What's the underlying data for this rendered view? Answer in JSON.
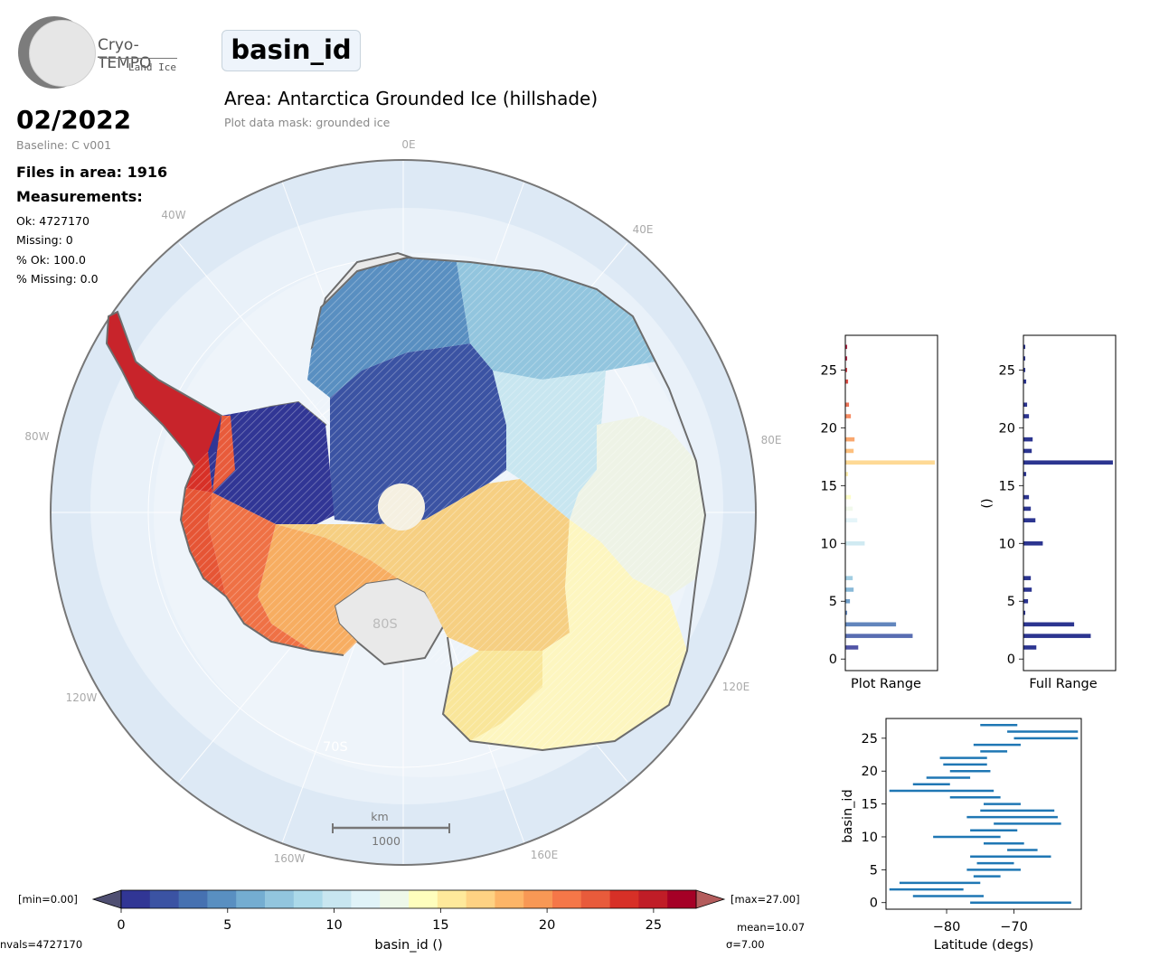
{
  "logo": {
    "title": "Cryo-TEMPO",
    "subtitle": "Land Ice"
  },
  "variable_name": "basin_id",
  "date": "02/2022",
  "baseline": "Baseline: C v001",
  "files_in_area": "Files in area: 1916",
  "measurements_title": "Measurements:",
  "stats": [
    "Ok: 4727170",
    "Missing: 0",
    "% Ok: 100.0",
    "% Missing: 0.0"
  ],
  "area_title": "Area: Antarctica Grounded Ice (hillshade)",
  "plot_mask": "Plot data mask: grounded ice",
  "map": {
    "lon_labels": [
      "0E",
      "40E",
      "80E",
      "120E",
      "160E",
      "160W",
      "120W",
      "80W",
      "40W"
    ],
    "lat_labels": [
      "80S",
      "70S"
    ],
    "scalebar": {
      "unit": "km",
      "length": "1000"
    }
  },
  "colorbar": {
    "min_label": "[min=0.00]",
    "max_label": "[max=27.00]",
    "ticks": [
      "0",
      "5",
      "10",
      "15",
      "20",
      "25"
    ],
    "label": "basin_id ()",
    "nvals": "nvals=4727170",
    "mean": "mean=10.07",
    "sigma": "σ=7.00",
    "colors": [
      "#313695",
      "#3b53a3",
      "#4671b1",
      "#598fc1",
      "#74add1",
      "#92c5de",
      "#abd9e9",
      "#c8e6f0",
      "#e0f3f8",
      "#eef8e9",
      "#fefebd",
      "#fee99b",
      "#fed283",
      "#fdb567",
      "#f89855",
      "#f57748",
      "#e85b3b",
      "#d73027",
      "#c01d27",
      "#a50026"
    ]
  },
  "hist_plot_range": {
    "xlabel": "Plot Range",
    "yticks": [
      "0",
      "5",
      "10",
      "15",
      "20",
      "25"
    ]
  },
  "hist_full_range": {
    "xlabel": "Full Range",
    "ylabel": "()",
    "yticks": [
      "0",
      "5",
      "10",
      "15",
      "20",
      "25"
    ]
  },
  "chart_data": [
    {
      "type": "bar",
      "orientation": "horizontal",
      "title": "",
      "xlabel": "Plot Range",
      "ylabel": "",
      "ylim": [
        -1,
        28
      ],
      "categories": [
        1,
        2,
        3,
        4,
        5,
        6,
        7,
        10,
        12,
        13,
        14,
        16,
        17,
        18,
        19,
        21,
        22,
        24,
        25,
        26,
        27
      ],
      "values": [
        0.14,
        0.73,
        0.55,
        0.02,
        0.05,
        0.09,
        0.08,
        0.21,
        0.13,
        0.08,
        0.06,
        0.03,
        0.97,
        0.09,
        0.1,
        0.06,
        0.04,
        0.03,
        0.02,
        0.02,
        0.02
      ]
    },
    {
      "type": "bar",
      "orientation": "horizontal",
      "title": "",
      "xlabel": "Full Range",
      "ylabel": "()",
      "ylim": [
        -1,
        28
      ],
      "categories": [
        1,
        2,
        3,
        4,
        5,
        6,
        7,
        10,
        12,
        13,
        14,
        16,
        17,
        18,
        19,
        21,
        22,
        24,
        25,
        26,
        27
      ],
      "values": [
        0.14,
        0.73,
        0.55,
        0.02,
        0.05,
        0.09,
        0.08,
        0.21,
        0.13,
        0.08,
        0.06,
        0.03,
        0.97,
        0.09,
        0.1,
        0.06,
        0.04,
        0.03,
        0.02,
        0.02,
        0.02
      ]
    },
    {
      "type": "bar",
      "orientation": "horizontal-range",
      "title": "",
      "xlabel": "Latitude (degs)",
      "ylabel": "basin_id",
      "xlim": [
        -89,
        -60
      ],
      "ylim": [
        -1,
        28
      ],
      "xticks": [
        "−80",
        "−70"
      ],
      "yticks": [
        "0",
        "5",
        "10",
        "15",
        "20",
        "25"
      ],
      "series": [
        {
          "y": 0,
          "lo": -76.5,
          "hi": -61.5
        },
        {
          "y": 1,
          "lo": -85.0,
          "hi": -74.5
        },
        {
          "y": 2,
          "lo": -88.5,
          "hi": -77.5
        },
        {
          "y": 3,
          "lo": -87.0,
          "hi": -75.0
        },
        {
          "y": 4,
          "lo": -76.0,
          "hi": -72.0
        },
        {
          "y": 5,
          "lo": -77.0,
          "hi": -69.0
        },
        {
          "y": 6,
          "lo": -75.5,
          "hi": -70.0
        },
        {
          "y": 7,
          "lo": -76.5,
          "hi": -64.5
        },
        {
          "y": 8,
          "lo": -71.0,
          "hi": -66.5
        },
        {
          "y": 9,
          "lo": -74.5,
          "hi": -68.5
        },
        {
          "y": 10,
          "lo": -82.0,
          "hi": -72.0
        },
        {
          "y": 11,
          "lo": -76.5,
          "hi": -69.5
        },
        {
          "y": 12,
          "lo": -73.0,
          "hi": -63.0
        },
        {
          "y": 13,
          "lo": -77.0,
          "hi": -63.5
        },
        {
          "y": 14,
          "lo": -75.0,
          "hi": -64.0
        },
        {
          "y": 15,
          "lo": -74.5,
          "hi": -69.0
        },
        {
          "y": 16,
          "lo": -79.5,
          "hi": -72.0
        },
        {
          "y": 17,
          "lo": -88.5,
          "hi": -73.0
        },
        {
          "y": 18,
          "lo": -85.0,
          "hi": -79.5
        },
        {
          "y": 19,
          "lo": -83.0,
          "hi": -76.5
        },
        {
          "y": 20,
          "lo": -79.5,
          "hi": -73.5
        },
        {
          "y": 21,
          "lo": -80.5,
          "hi": -74.0
        },
        {
          "y": 22,
          "lo": -81.0,
          "hi": -74.0
        },
        {
          "y": 23,
          "lo": -75.0,
          "hi": -71.0
        },
        {
          "y": 24,
          "lo": -76.0,
          "hi": -69.0
        },
        {
          "y": 25,
          "lo": -70.0,
          "hi": -60.5
        },
        {
          "y": 26,
          "lo": -71.0,
          "hi": -60.5
        },
        {
          "y": 27,
          "lo": -75.0,
          "hi": -69.5
        }
      ]
    }
  ]
}
